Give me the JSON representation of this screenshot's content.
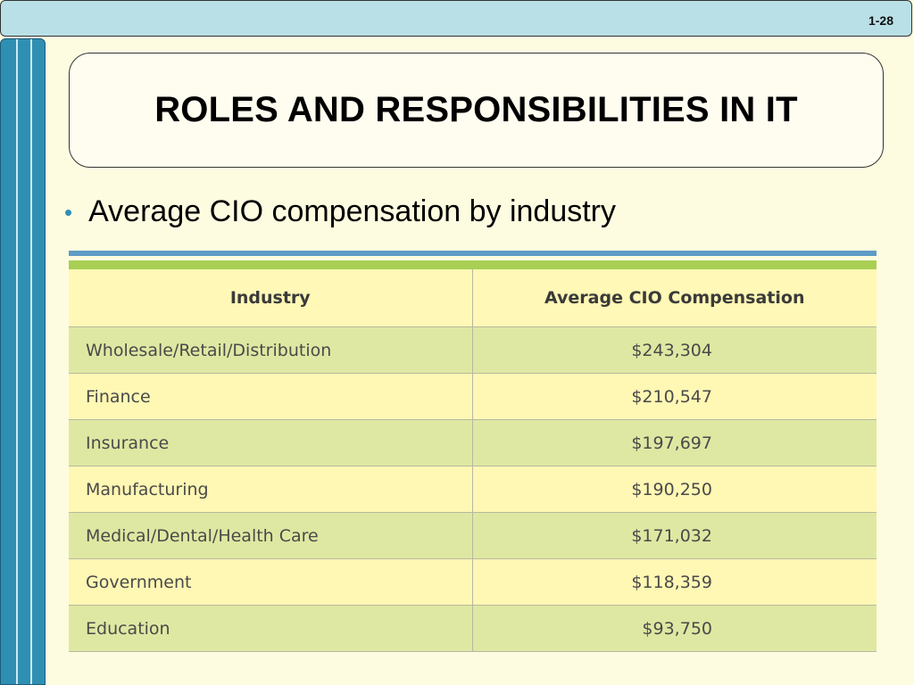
{
  "slide": {
    "page_number": "1-28",
    "title": "ROLES AND RESPONSIBILITIES IN IT",
    "bullet": "Average CIO compensation by industry"
  },
  "colors": {
    "background": "#fefce0",
    "top_bar": "#b9e0e6",
    "left_bar": "#2f8fb3",
    "rule_blue": "#5e9bc7",
    "rule_green": "#a9cf54",
    "row_green": "#dfe8a2",
    "row_yellow": "#fff7b4"
  },
  "table": {
    "headers": [
      "Industry",
      "Average CIO Compensation"
    ],
    "rows": [
      {
        "industry": "Wholesale/Retail/Distribution",
        "compensation": "$243,304"
      },
      {
        "industry": "Finance",
        "compensation": "$210,547"
      },
      {
        "industry": "Insurance",
        "compensation": "$197,697"
      },
      {
        "industry": "Manufacturing",
        "compensation": "$190,250"
      },
      {
        "industry": "Medical/Dental/Health Care",
        "compensation": "$171,032"
      },
      {
        "industry": "Government",
        "compensation": "$118,359"
      },
      {
        "industry": "Education",
        "compensation": "$93,750"
      }
    ]
  }
}
